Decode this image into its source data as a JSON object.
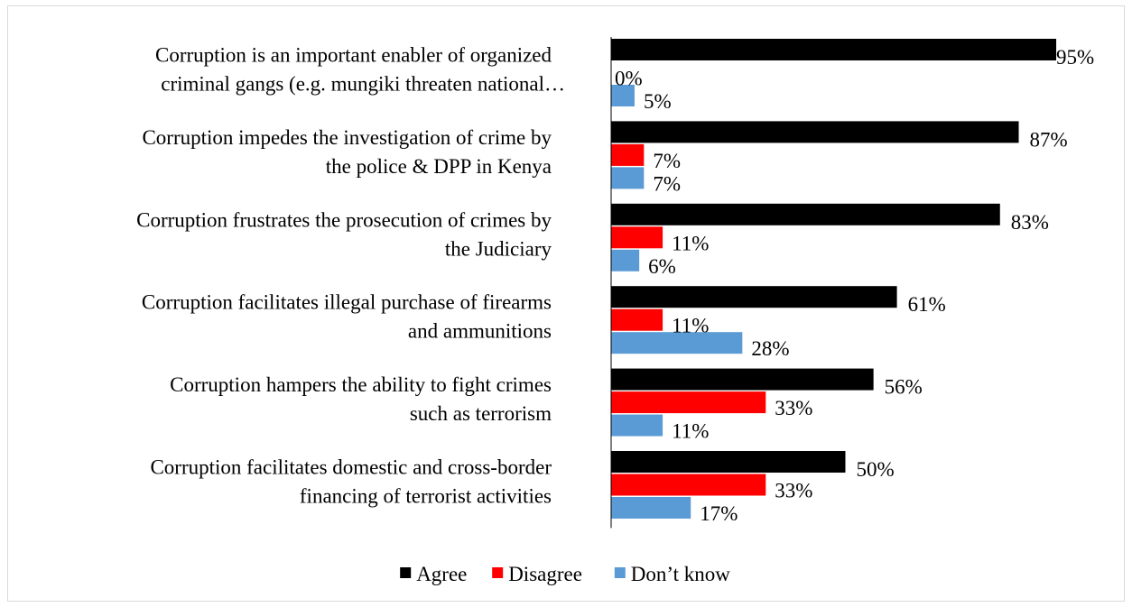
{
  "chart_data": {
    "type": "bar",
    "orientation": "horizontal",
    "title": "",
    "xlabel": "",
    "ylabel": "",
    "xlim": [
      0,
      100
    ],
    "grid": false,
    "legend_position": "bottom",
    "value_suffix": "%",
    "categories": [
      [
        "Corruption is an important enabler of organized",
        "criminal gangs (e.g. mungiki threaten national…"
      ],
      [
        "Corruption impedes the investigation of crime by",
        "the police & DPP in Kenya"
      ],
      [
        "Corruption frustrates the prosecution of crimes by",
        "the Judiciary"
      ],
      [
        "Corruption facilitates illegal purchase of firearms",
        "and ammunitions"
      ],
      [
        "Corruption hampers the ability to fight crimes",
        "such as terrorism"
      ],
      [
        "Corruption facilitates domestic and cross-border",
        "financing of terrorist activities"
      ]
    ],
    "series": [
      {
        "name": "Agree",
        "color": "#000000",
        "values": [
          95,
          87,
          83,
          61,
          56,
          50
        ]
      },
      {
        "name": "Disagree",
        "color": "#ff0000",
        "values": [
          0,
          7,
          11,
          11,
          33,
          33
        ]
      },
      {
        "name": "Don’t know",
        "color": "#5b9bd5",
        "values": [
          5,
          7,
          6,
          28,
          11,
          17
        ]
      }
    ]
  }
}
